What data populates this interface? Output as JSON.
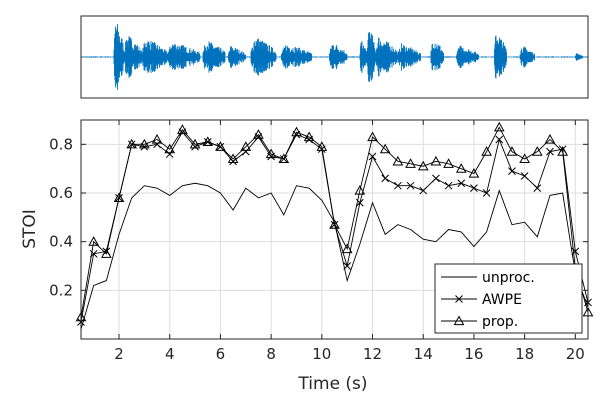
{
  "chart_data": [
    {
      "type": "line",
      "panel": "waveform",
      "title": "",
      "xlabel": "",
      "ylabel": "",
      "xlim": [
        0.5,
        20.5
      ],
      "ylim": [
        -1,
        1
      ],
      "color": "#0072BD",
      "segments": [
        {
          "start": 1.8,
          "end": 2.2,
          "amp": 1.0
        },
        {
          "start": 2.2,
          "end": 2.9,
          "amp": 0.6
        },
        {
          "start": 2.9,
          "end": 3.9,
          "amp": 0.5
        },
        {
          "start": 3.9,
          "end": 5.2,
          "amp": 0.4
        },
        {
          "start": 5.3,
          "end": 6.2,
          "amp": 0.45
        },
        {
          "start": 6.3,
          "end": 7.0,
          "amp": 0.3
        },
        {
          "start": 7.2,
          "end": 8.2,
          "amp": 0.55
        },
        {
          "start": 8.4,
          "end": 9.6,
          "amp": 0.35
        },
        {
          "start": 10.3,
          "end": 11.0,
          "amp": 0.4
        },
        {
          "start": 11.5,
          "end": 11.8,
          "amp": 0.45
        },
        {
          "start": 11.8,
          "end": 12.1,
          "amp": 0.9
        },
        {
          "start": 12.1,
          "end": 13.0,
          "amp": 0.55
        },
        {
          "start": 13.0,
          "end": 13.9,
          "amp": 0.35
        },
        {
          "start": 14.3,
          "end": 14.8,
          "amp": 0.55
        },
        {
          "start": 15.3,
          "end": 16.2,
          "amp": 0.3
        },
        {
          "start": 16.8,
          "end": 17.3,
          "amp": 0.7
        },
        {
          "start": 17.8,
          "end": 18.4,
          "amp": 0.3
        },
        {
          "start": 20.0,
          "end": 20.3,
          "amp": 0.1
        }
      ]
    },
    {
      "type": "line",
      "panel": "stoi",
      "title": "",
      "xlabel": "Time (s)",
      "ylabel": "STOI",
      "xlim": [
        0.5,
        20.5
      ],
      "ylim": [
        0.0,
        0.9
      ],
      "xticks": [
        "2",
        "4",
        "6",
        "8",
        "10",
        "12",
        "14",
        "16",
        "18",
        "20"
      ],
      "yticks": [
        "0.2",
        "0.4",
        "0.6",
        "0.8"
      ],
      "grid": true,
      "legend_position": "bottom-right",
      "x": [
        0.5,
        1.0,
        1.5,
        2.0,
        2.5,
        3.0,
        3.5,
        4.0,
        4.5,
        5.0,
        5.5,
        6.0,
        6.5,
        7.0,
        7.5,
        8.0,
        8.5,
        9.0,
        9.5,
        10.0,
        10.5,
        11.0,
        11.5,
        12.0,
        12.5,
        13.0,
        13.5,
        14.0,
        14.5,
        15.0,
        15.5,
        16.0,
        16.5,
        17.0,
        17.5,
        18.0,
        18.5,
        19.0,
        19.5,
        20.0,
        20.5
      ],
      "series": [
        {
          "name": "unproc.",
          "marker": "none",
          "values": [
            0.04,
            0.22,
            0.24,
            0.43,
            0.58,
            0.63,
            0.62,
            0.59,
            0.63,
            0.64,
            0.63,
            0.6,
            0.53,
            0.62,
            0.58,
            0.6,
            0.51,
            0.63,
            0.62,
            0.57,
            0.48,
            0.24,
            0.39,
            0.56,
            0.43,
            0.47,
            0.45,
            0.41,
            0.4,
            0.45,
            0.44,
            0.38,
            0.44,
            0.61,
            0.47,
            0.48,
            0.42,
            0.59,
            0.6,
            0.27,
            0.13
          ]
        },
        {
          "name": "AWPE",
          "marker": "x",
          "values": [
            0.07,
            0.35,
            0.36,
            0.58,
            0.8,
            0.79,
            0.8,
            0.76,
            0.85,
            0.79,
            0.81,
            0.79,
            0.73,
            0.77,
            0.83,
            0.75,
            0.74,
            0.84,
            0.82,
            0.78,
            0.47,
            0.3,
            0.56,
            0.75,
            0.66,
            0.63,
            0.63,
            0.61,
            0.66,
            0.63,
            0.64,
            0.62,
            0.6,
            0.82,
            0.69,
            0.67,
            0.62,
            0.77,
            0.78,
            0.36,
            0.15
          ]
        },
        {
          "name": "prop.",
          "marker": "triangle",
          "values": [
            0.09,
            0.4,
            0.35,
            0.58,
            0.8,
            0.8,
            0.82,
            0.78,
            0.86,
            0.8,
            0.81,
            0.79,
            0.74,
            0.79,
            0.84,
            0.76,
            0.74,
            0.85,
            0.83,
            0.79,
            0.47,
            0.37,
            0.61,
            0.83,
            0.78,
            0.73,
            0.72,
            0.71,
            0.73,
            0.72,
            0.7,
            0.68,
            0.77,
            0.87,
            0.77,
            0.74,
            0.77,
            0.82,
            0.77,
            0.29,
            0.11
          ]
        }
      ]
    }
  ]
}
